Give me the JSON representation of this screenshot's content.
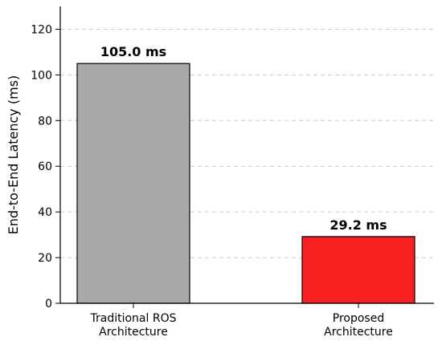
{
  "chart_data": {
    "type": "bar",
    "title": "",
    "xlabel": "",
    "ylabel": "End-to-End Latency (ms)",
    "categories": [
      [
        "Traditional ROS",
        "Architecture"
      ],
      [
        "Proposed",
        "Architecture"
      ]
    ],
    "values": [
      105.0,
      29.2
    ],
    "data_labels": [
      "105.0 ms",
      "29.2 ms"
    ],
    "bar_colors": [
      "#a9a9a9",
      "#f92222"
    ],
    "edge_color": "#000000",
    "ylim": [
      0,
      130
    ],
    "yticks": [
      0,
      20,
      40,
      60,
      80,
      100,
      120
    ],
    "grid": "y-dashed",
    "legend": "none"
  }
}
